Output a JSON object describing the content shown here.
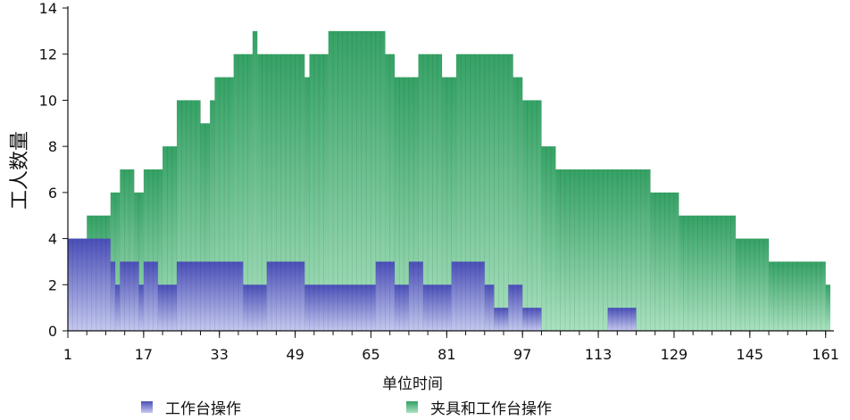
{
  "chart_data": {
    "type": "bar",
    "subtype": "stacked-overlap",
    "ylabel": "工人数量",
    "xlabel": "单位时间",
    "ylim": [
      0,
      14
    ],
    "yticks": [
      0,
      2,
      4,
      6,
      8,
      10,
      12,
      14
    ],
    "xticks": [
      1,
      17,
      33,
      49,
      65,
      81,
      97,
      113,
      129,
      145,
      161
    ],
    "xlim": [
      1,
      162
    ],
    "grid": false,
    "legend_position": "bottom",
    "series": [
      {
        "name": "工作台操作",
        "color": "#5a5fc0",
        "segments": [
          {
            "start": 1,
            "end": 10,
            "value": 4
          },
          {
            "start": 10,
            "end": 11,
            "value": 3
          },
          {
            "start": 11,
            "end": 12,
            "value": 2
          },
          {
            "start": 12,
            "end": 16,
            "value": 3
          },
          {
            "start": 16,
            "end": 17,
            "value": 2
          },
          {
            "start": 17,
            "end": 20,
            "value": 3
          },
          {
            "start": 20,
            "end": 24,
            "value": 2
          },
          {
            "start": 24,
            "end": 38,
            "value": 3
          },
          {
            "start": 38,
            "end": 43,
            "value": 2
          },
          {
            "start": 43,
            "end": 51,
            "value": 3
          },
          {
            "start": 51,
            "end": 66,
            "value": 2
          },
          {
            "start": 66,
            "end": 70,
            "value": 3
          },
          {
            "start": 70,
            "end": 73,
            "value": 2
          },
          {
            "start": 73,
            "end": 76,
            "value": 3
          },
          {
            "start": 76,
            "end": 82,
            "value": 2
          },
          {
            "start": 82,
            "end": 89,
            "value": 3
          },
          {
            "start": 89,
            "end": 91,
            "value": 2
          },
          {
            "start": 91,
            "end": 94,
            "value": 1
          },
          {
            "start": 94,
            "end": 97,
            "value": 2
          },
          {
            "start": 97,
            "end": 101,
            "value": 1
          },
          {
            "start": 115,
            "end": 121,
            "value": 1
          }
        ]
      },
      {
        "name": "夹具和工作台操作",
        "color": "#3fae6e",
        "segments": [
          {
            "start": 1,
            "end": 5,
            "value": 4
          },
          {
            "start": 5,
            "end": 10,
            "value": 5
          },
          {
            "start": 10,
            "end": 12,
            "value": 6
          },
          {
            "start": 12,
            "end": 15,
            "value": 7
          },
          {
            "start": 15,
            "end": 17,
            "value": 6
          },
          {
            "start": 17,
            "end": 21,
            "value": 7
          },
          {
            "start": 21,
            "end": 24,
            "value": 8
          },
          {
            "start": 24,
            "end": 29,
            "value": 10
          },
          {
            "start": 29,
            "end": 31,
            "value": 9
          },
          {
            "start": 31,
            "end": 32,
            "value": 10
          },
          {
            "start": 32,
            "end": 36,
            "value": 11
          },
          {
            "start": 36,
            "end": 40,
            "value": 12
          },
          {
            "start": 40,
            "end": 41,
            "value": 13
          },
          {
            "start": 41,
            "end": 51,
            "value": 12
          },
          {
            "start": 51,
            "end": 52,
            "value": 11
          },
          {
            "start": 52,
            "end": 56,
            "value": 12
          },
          {
            "start": 56,
            "end": 68,
            "value": 13
          },
          {
            "start": 68,
            "end": 70,
            "value": 12
          },
          {
            "start": 70,
            "end": 75,
            "value": 11
          },
          {
            "start": 75,
            "end": 80,
            "value": 12
          },
          {
            "start": 80,
            "end": 83,
            "value": 11
          },
          {
            "start": 83,
            "end": 95,
            "value": 12
          },
          {
            "start": 95,
            "end": 97,
            "value": 11
          },
          {
            "start": 97,
            "end": 101,
            "value": 10
          },
          {
            "start": 101,
            "end": 104,
            "value": 8
          },
          {
            "start": 104,
            "end": 124,
            "value": 7
          },
          {
            "start": 124,
            "end": 130,
            "value": 6
          },
          {
            "start": 130,
            "end": 142,
            "value": 5
          },
          {
            "start": 142,
            "end": 149,
            "value": 4
          },
          {
            "start": 149,
            "end": 161,
            "value": 3
          },
          {
            "start": 161,
            "end": 162,
            "value": 2
          }
        ]
      }
    ]
  }
}
